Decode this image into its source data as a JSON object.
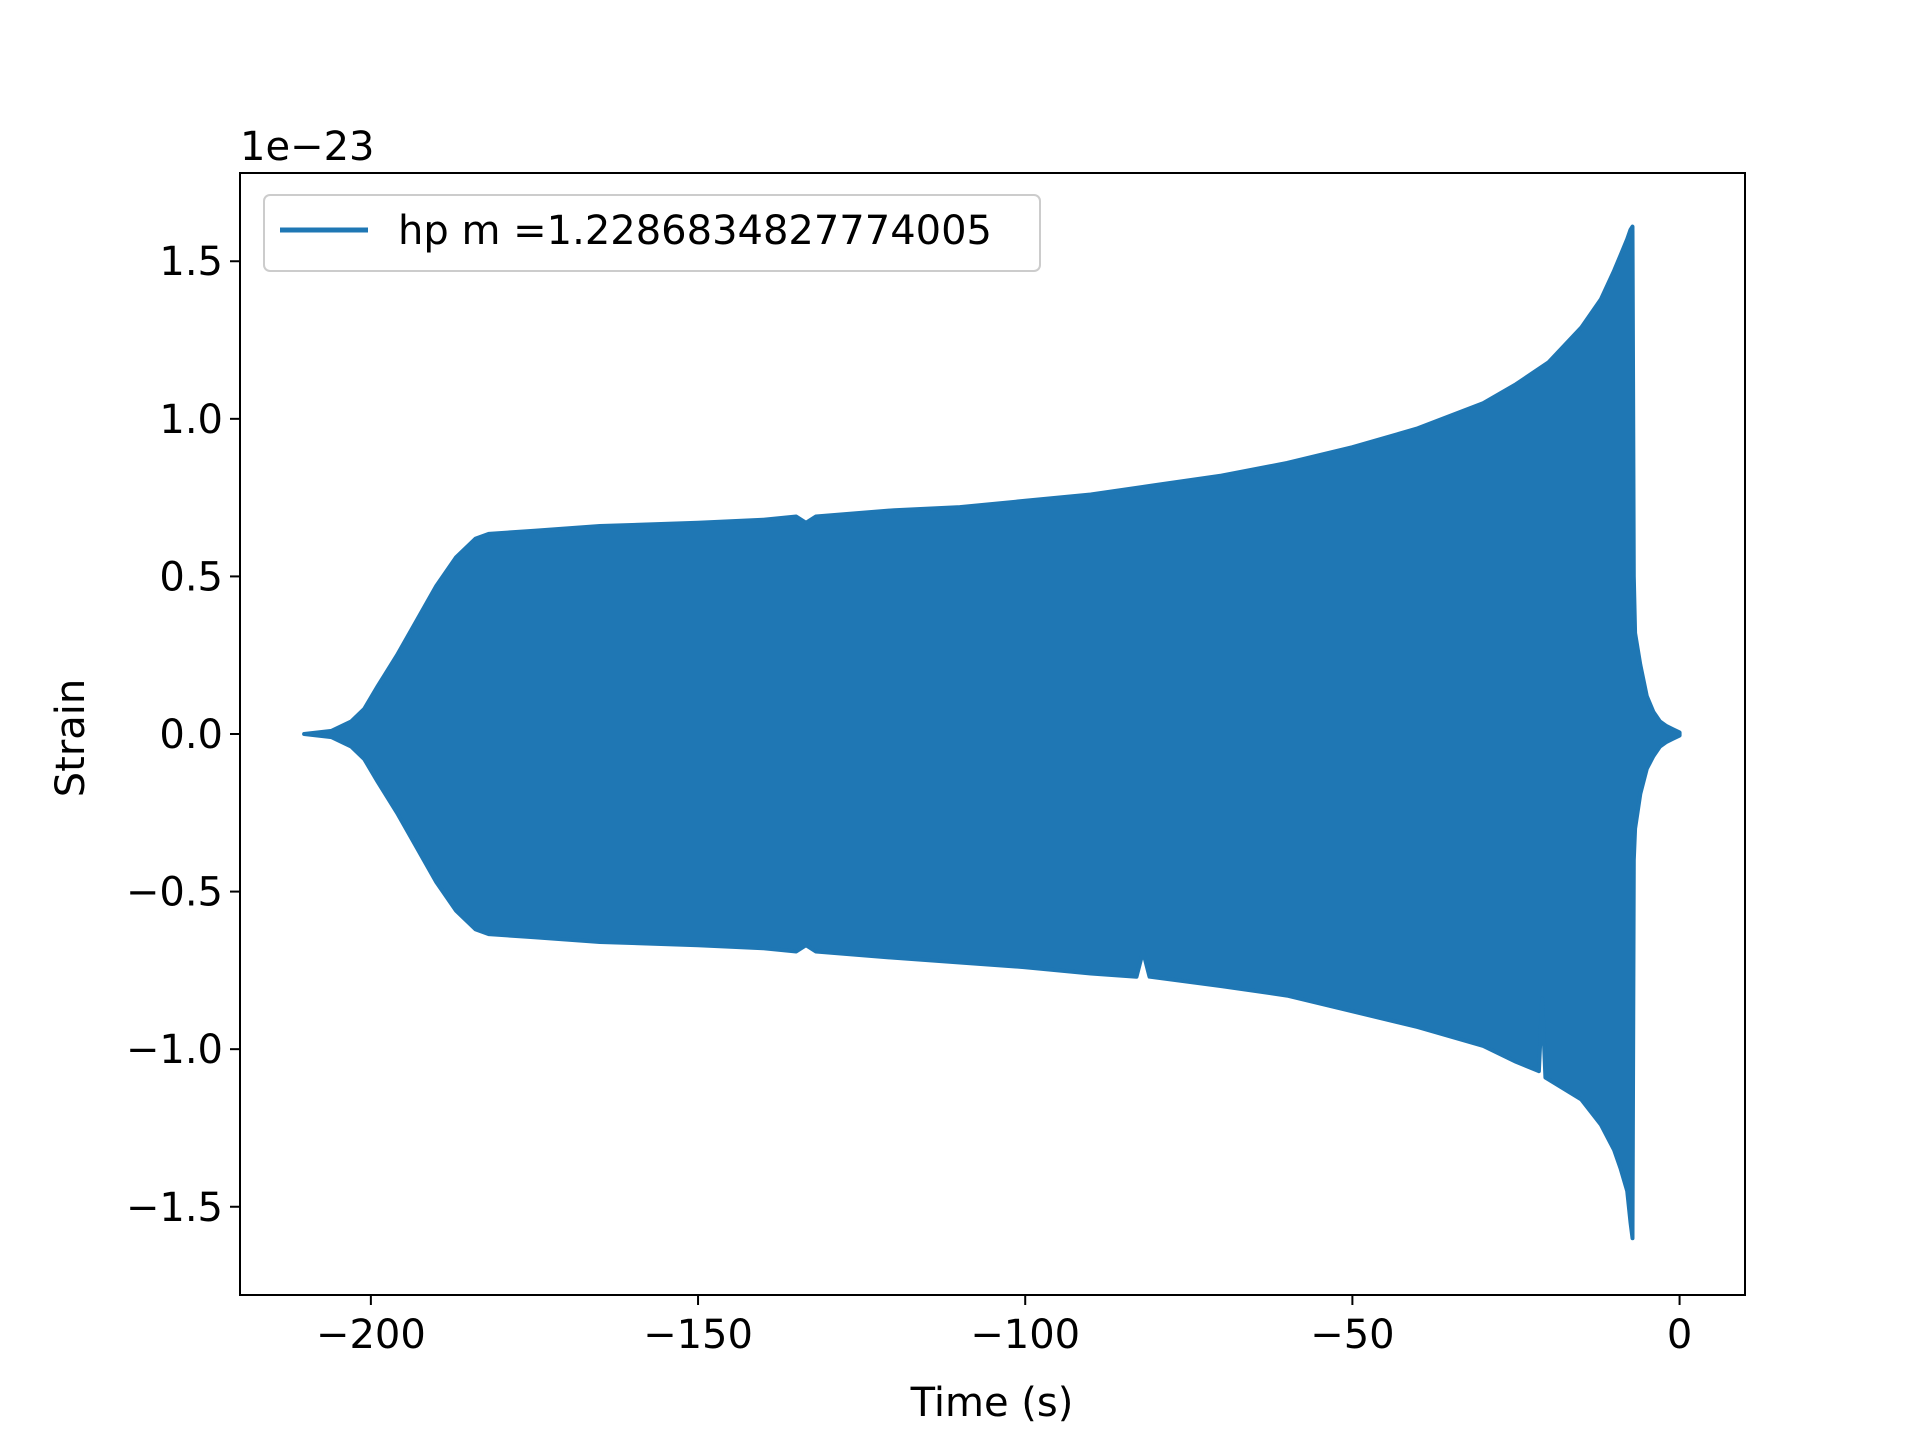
{
  "chart_data": {
    "type": "area",
    "title": "",
    "xlabel": "Time (s)",
    "ylabel": "Strain",
    "offset_label": "1e−23",
    "xlim": [
      -220,
      10
    ],
    "ylim": [
      -1.78,
      1.78
    ],
    "x_ticks": [
      -200,
      -150,
      -100,
      -50,
      0
    ],
    "x_tick_labels": [
      "−200",
      "−150",
      "−100",
      "−50",
      "0"
    ],
    "y_ticks": [
      -1.5,
      -1.0,
      -0.5,
      0.0,
      0.5,
      1.0,
      1.5
    ],
    "y_tick_labels": [
      "−1.5",
      "−1.0",
      "−0.5",
      "0.0",
      "0.5",
      "1.0",
      "1.5"
    ],
    "grid": false,
    "legend_position": "upper-left",
    "series": [
      {
        "name": "hp m =1.2286834827774005",
        "color": "#1f77b4",
        "upper": [
          [
            -210.2,
            0.0
          ],
          [
            -206,
            0.01
          ],
          [
            -203,
            0.04
          ],
          [
            -201,
            0.08
          ],
          [
            -199,
            0.15
          ],
          [
            -196,
            0.25
          ],
          [
            -193,
            0.36
          ],
          [
            -190,
            0.47
          ],
          [
            -187,
            0.56
          ],
          [
            -184,
            0.62
          ],
          [
            -182,
            0.635
          ],
          [
            -175,
            0.645
          ],
          [
            -165,
            0.66
          ],
          [
            -150,
            0.67
          ],
          [
            -140,
            0.68
          ],
          [
            -135,
            0.69
          ],
          [
            -133.5,
            0.67
          ],
          [
            -132,
            0.69
          ],
          [
            -120,
            0.71
          ],
          [
            -110,
            0.72
          ],
          [
            -100,
            0.74
          ],
          [
            -90,
            0.76
          ],
          [
            -80,
            0.79
          ],
          [
            -70,
            0.82
          ],
          [
            -60,
            0.86
          ],
          [
            -50,
            0.91
          ],
          [
            -40,
            0.97
          ],
          [
            -30,
            1.05
          ],
          [
            -25,
            1.11
          ],
          [
            -20,
            1.18
          ],
          [
            -15,
            1.29
          ],
          [
            -12,
            1.38
          ],
          [
            -10,
            1.47
          ],
          [
            -9,
            1.52
          ],
          [
            -8,
            1.57
          ],
          [
            -7.5,
            1.6
          ],
          [
            -7.2,
            1.61
          ],
          [
            -7.0,
            0.5
          ],
          [
            -6.8,
            0.32
          ],
          [
            -6,
            0.22
          ],
          [
            -5,
            0.12
          ],
          [
            -4,
            0.07
          ],
          [
            -3,
            0.04
          ],
          [
            -2,
            0.025
          ],
          [
            -1,
            0.015
          ],
          [
            0,
            0.005
          ]
        ],
        "lower": [
          [
            -210.2,
            0.0
          ],
          [
            -206,
            -0.01
          ],
          [
            -203,
            -0.04
          ],
          [
            -201,
            -0.08
          ],
          [
            -199,
            -0.15
          ],
          [
            -196,
            -0.25
          ],
          [
            -193,
            -0.36
          ],
          [
            -190,
            -0.47
          ],
          [
            -187,
            -0.56
          ],
          [
            -184,
            -0.62
          ],
          [
            -182,
            -0.635
          ],
          [
            -175,
            -0.645
          ],
          [
            -165,
            -0.66
          ],
          [
            -150,
            -0.67
          ],
          [
            -140,
            -0.68
          ],
          [
            -135,
            -0.69
          ],
          [
            -133.5,
            -0.67
          ],
          [
            -132,
            -0.69
          ],
          [
            -120,
            -0.71
          ],
          [
            -110,
            -0.725
          ],
          [
            -100,
            -0.74
          ],
          [
            -90,
            -0.76
          ],
          [
            -83,
            -0.77
          ],
          [
            -82,
            -0.69
          ],
          [
            -81,
            -0.77
          ],
          [
            -70,
            -0.8
          ],
          [
            -60,
            -0.83
          ],
          [
            -50,
            -0.88
          ],
          [
            -40,
            -0.93
          ],
          [
            -30,
            -0.99
          ],
          [
            -25,
            -1.04
          ],
          [
            -21.5,
            -1.07
          ],
          [
            -21,
            -0.84
          ],
          [
            -20.5,
            -1.09
          ],
          [
            -15,
            -1.16
          ],
          [
            -12,
            -1.24
          ],
          [
            -10,
            -1.32
          ],
          [
            -9,
            -1.38
          ],
          [
            -8,
            -1.45
          ],
          [
            -7.5,
            -1.55
          ],
          [
            -7.2,
            -1.6
          ],
          [
            -7.0,
            -0.4
          ],
          [
            -6.8,
            -0.3
          ],
          [
            -6,
            -0.19
          ],
          [
            -5,
            -0.11
          ],
          [
            -4,
            -0.07
          ],
          [
            -3,
            -0.04
          ],
          [
            -2,
            -0.025
          ],
          [
            -1,
            -0.015
          ],
          [
            0,
            -0.005
          ]
        ]
      }
    ]
  }
}
